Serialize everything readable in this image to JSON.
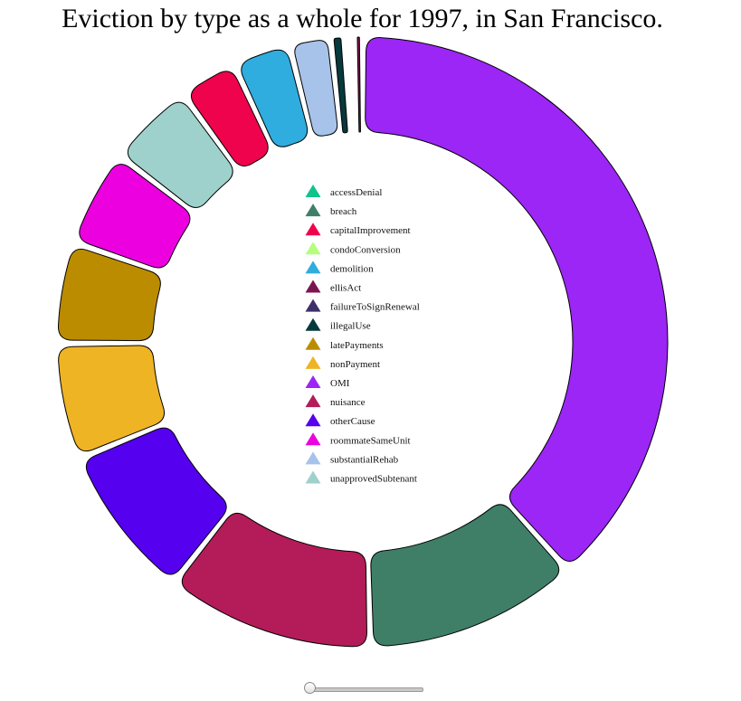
{
  "chart_data": {
    "type": "pie",
    "donut": true,
    "title": "Eviction by type as a whole for 1997, in San Francisco.",
    "slices": [
      {
        "label": "OMI",
        "value": 1500,
        "color": "#9b26f5"
      },
      {
        "label": "breach",
        "value": 440,
        "color": "#3f7f68"
      },
      {
        "label": "nuisance",
        "value": 430,
        "color": "#b31c59"
      },
      {
        "label": "otherCause",
        "value": 320,
        "color": "#5500ee"
      },
      {
        "label": "nonPayment",
        "value": 240,
        "color": "#efb424"
      },
      {
        "label": "latePayments",
        "value": 210,
        "color": "#bc8c00"
      },
      {
        "label": "roommateSameUnit",
        "value": 200,
        "color": "#ec00e0"
      },
      {
        "label": "unapprovedSubtenant",
        "value": 180,
        "color": "#9ed1cc"
      },
      {
        "label": "capitalImprovement",
        "value": 120,
        "color": "#f0034d"
      },
      {
        "label": "demolition",
        "value": 120,
        "color": "#2fadde"
      },
      {
        "label": "substantialRehab",
        "value": 85,
        "color": "#a7c3ea"
      },
      {
        "label": "illegalUse",
        "value": 28,
        "color": "#063a3d"
      },
      {
        "label": "accessDenial",
        "value": 10,
        "color": "#10c28c"
      },
      {
        "label": "condoConversion",
        "value": 5,
        "color": "#b4ff7c"
      },
      {
        "label": "failureToSignRenewal",
        "value": 5,
        "color": "#3f2f6b"
      },
      {
        "label": "ellisAct",
        "value": 18,
        "color": "#7d1650"
      }
    ],
    "legend": [
      {
        "label": "accessDenial",
        "color": "#10c28c"
      },
      {
        "label": "breach",
        "color": "#3f7f68"
      },
      {
        "label": "capitalImprovement",
        "color": "#f0034d"
      },
      {
        "label": "condoConversion",
        "color": "#b4ff7c"
      },
      {
        "label": "demolition",
        "color": "#2fadde"
      },
      {
        "label": "ellisAct",
        "color": "#7d1650"
      },
      {
        "label": "failureToSignRenewal",
        "color": "#3f2f6b"
      },
      {
        "label": "illegalUse",
        "color": "#063a3d"
      },
      {
        "label": "latePayments",
        "color": "#bc8c00"
      },
      {
        "label": "nonPayment",
        "color": "#efb424"
      },
      {
        "label": "OMI",
        "color": "#9b26f5"
      },
      {
        "label": "nuisance",
        "color": "#b31c59"
      },
      {
        "label": "otherCause",
        "color": "#5500ee"
      },
      {
        "label": "roommateSameUnit",
        "color": "#ec00e0"
      },
      {
        "label": "substantialRehab",
        "color": "#a7c3ea"
      },
      {
        "label": "unapprovedSubtenant",
        "color": "#9ed1cc"
      }
    ],
    "legend_placement": "center"
  },
  "slider": {
    "position": 0
  }
}
